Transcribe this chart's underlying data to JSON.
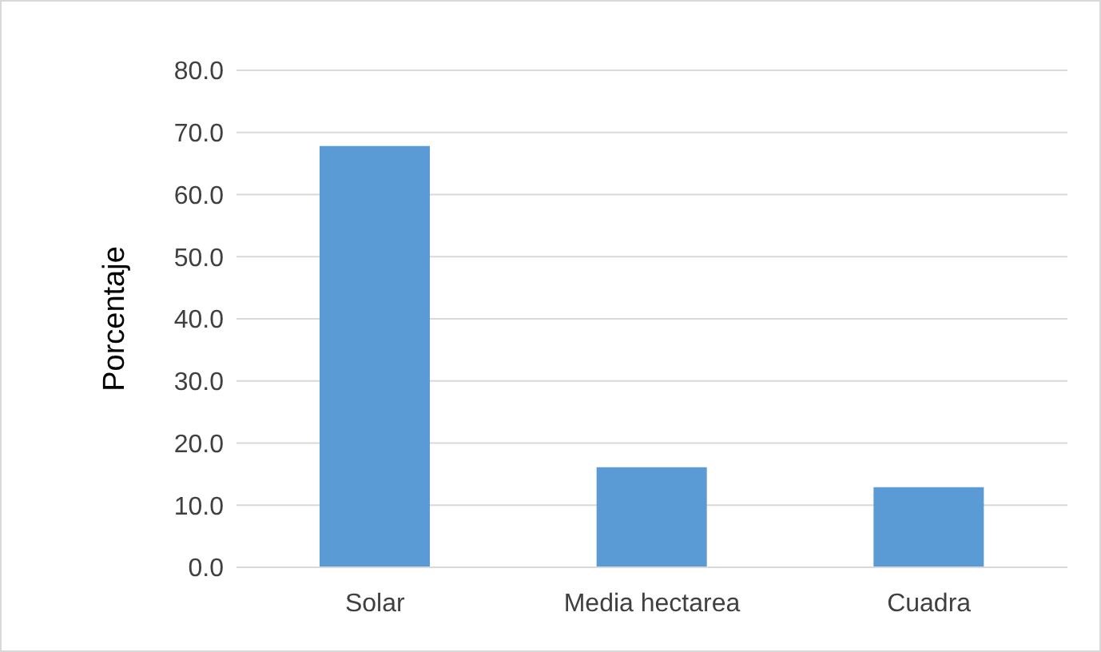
{
  "chart_data": {
    "type": "bar",
    "ylabel": "Porcentaje",
    "categories": [
      "Solar",
      "Media hectarea",
      "Cuadra"
    ],
    "values": [
      67.8,
      16.1,
      12.9
    ],
    "color": "#5b9bd5",
    "ylim": [
      0,
      80
    ],
    "yticks": [
      {
        "value": 0,
        "label": "0.0"
      },
      {
        "value": 10,
        "label": "10.0"
      },
      {
        "value": 20,
        "label": "20.0"
      },
      {
        "value": 30,
        "label": "30.0"
      },
      {
        "value": 40,
        "label": "40.0"
      },
      {
        "value": 50,
        "label": "50.0"
      },
      {
        "value": 60,
        "label": "60.0"
      },
      {
        "value": 70,
        "label": "70.0"
      },
      {
        "value": 80,
        "label": "80.0"
      }
    ],
    "grid": "y"
  }
}
